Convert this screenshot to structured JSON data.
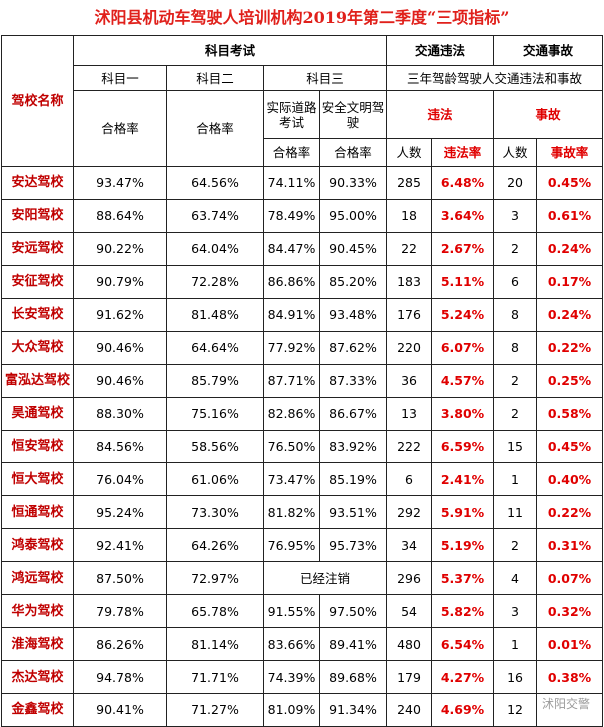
{
  "title": "沭阳县机动车驾驶人培训机构2019年第二季度“三项指标”",
  "header": {
    "school": "驾校名称",
    "exam": "科目考试",
    "violation": "交通违法",
    "accident": "交通事故",
    "subject1": "科目一",
    "subject2": "科目二",
    "subject3": "科目三",
    "three_year": "三年驾龄驾驶人交通违法和事故",
    "pass1": "合格率",
    "pass2": "合格率",
    "road": "实际道路考试",
    "civil": "安全文明驾驶",
    "violation_sub": "违法",
    "accident_sub": "事故",
    "pass3": "合格率",
    "pass4": "合格率",
    "count1": "人数",
    "violation_rate": "违法率",
    "count2": "人数",
    "accident_rate": "事故率"
  },
  "table": {
    "rows": [
      [
        "安达驾校",
        "93.47%",
        "64.56%",
        "74.11%",
        "90.33%",
        "285",
        "6.48%",
        "20",
        "0.45%"
      ],
      [
        "安阳驾校",
        "88.64%",
        "63.74%",
        "78.49%",
        "95.00%",
        "18",
        "3.64%",
        "3",
        "0.61%"
      ],
      [
        "安远驾校",
        "90.22%",
        "64.04%",
        "84.47%",
        "90.45%",
        "22",
        "2.67%",
        "2",
        "0.24%"
      ],
      [
        "安征驾校",
        "90.79%",
        "72.28%",
        "86.86%",
        "85.20%",
        "183",
        "5.11%",
        "6",
        "0.17%"
      ],
      [
        "长安驾校",
        "91.62%",
        "81.48%",
        "84.91%",
        "93.48%",
        "176",
        "5.24%",
        "8",
        "0.24%"
      ],
      [
        "大众驾校",
        "90.46%",
        "64.64%",
        "77.92%",
        "87.62%",
        "220",
        "6.07%",
        "8",
        "0.22%"
      ],
      [
        "富泓达驾校",
        "90.46%",
        "85.79%",
        "87.71%",
        "87.33%",
        "36",
        "4.57%",
        "2",
        "0.25%"
      ],
      [
        "昊通驾校",
        "88.30%",
        "75.16%",
        "82.86%",
        "86.67%",
        "13",
        "3.80%",
        "2",
        "0.58%"
      ],
      [
        "恒安驾校",
        "84.56%",
        "58.56%",
        "76.50%",
        "83.92%",
        "222",
        "6.59%",
        "15",
        "0.45%"
      ],
      [
        "恒大驾校",
        "76.04%",
        "61.06%",
        "73.47%",
        "85.19%",
        "6",
        "2.41%",
        "1",
        "0.40%"
      ],
      [
        "恒通驾校",
        "95.24%",
        "73.30%",
        "81.82%",
        "93.51%",
        "292",
        "5.91%",
        "11",
        "0.22%"
      ],
      [
        "鸿泰驾校",
        "92.41%",
        "64.26%",
        "76.95%",
        "95.73%",
        "34",
        "5.19%",
        "2",
        "0.31%"
      ],
      [
        "鸿远驾校",
        "87.50%",
        "72.97%",
        "已经注销",
        "296",
        "5.37%",
        "4",
        "0.07%"
      ],
      [
        "华为驾校",
        "79.78%",
        "65.78%",
        "91.55%",
        "97.50%",
        "54",
        "5.82%",
        "3",
        "0.32%"
      ],
      [
        "淮海驾校",
        "86.26%",
        "81.14%",
        "83.66%",
        "89.41%",
        "480",
        "6.54%",
        "1",
        "0.01%"
      ],
      [
        "杰达驾校",
        "94.78%",
        "71.71%",
        "74.39%",
        "89.68%",
        "179",
        "4.27%",
        "16",
        "0.38%"
      ],
      [
        "金鑫驾校",
        "90.41%",
        "71.27%",
        "81.09%",
        "91.34%",
        "240",
        "4.69%",
        "12",
        null
      ]
    ]
  },
  "watermark": "沭阳交警"
}
